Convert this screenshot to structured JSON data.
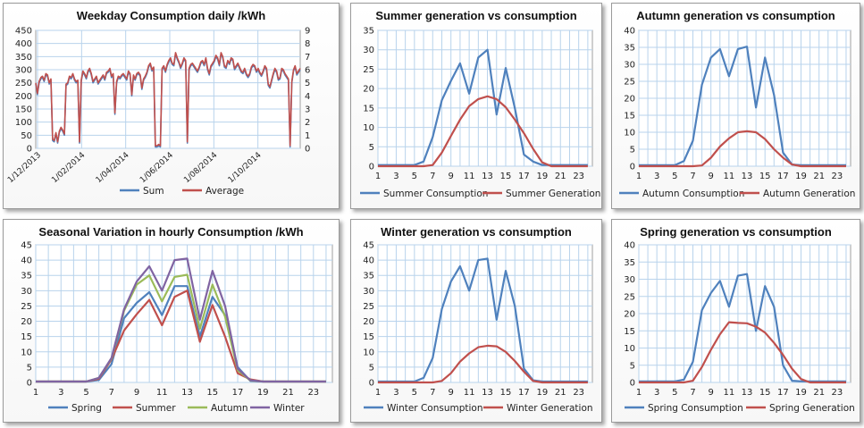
{
  "colors": {
    "blue": "#4f81bd",
    "red": "#c0504d",
    "green": "#9bbb59",
    "purple": "#8064a2",
    "grid": "#b8d3ec"
  },
  "chart_data": [
    {
      "id": "c1",
      "type": "line",
      "title": "Weekday Consumption daily /kWh",
      "xticklabels": [
        "1/12/2013",
        "1/02/2014",
        "1/04/2014",
        "1/06/2014",
        "1/08/2014",
        "1/10/2014"
      ],
      "ylim": [
        0,
        450
      ],
      "yticks": [
        0,
        50,
        100,
        150,
        200,
        250,
        300,
        350,
        400,
        450
      ],
      "y2lim": [
        0,
        9
      ],
      "y2ticks": [
        0,
        1,
        2,
        3,
        4,
        5,
        6,
        7,
        8,
        9
      ],
      "legend": "bottom",
      "series": [
        {
          "name": "Sum",
          "color": "#4f81bd",
          "values": [
            245,
            205,
            250,
            265,
            270,
            255,
            280,
            275,
            245,
            260,
            30,
            25,
            55,
            20,
            60,
            75,
            65,
            50,
            240,
            245,
            270,
            265,
            280,
            260,
            250,
            255,
            20,
            255,
            290,
            280,
            265,
            290,
            300,
            280,
            250,
            260,
            270,
            245,
            255,
            265,
            275,
            260,
            285,
            290,
            300,
            270,
            280,
            130,
            250,
            270,
            265,
            275,
            280,
            270,
            260,
            290,
            280,
            200,
            275,
            260,
            280,
            285,
            275,
            225,
            260,
            270,
            285,
            310,
            320,
            295,
            305,
            5,
            5,
            10,
            5,
            300,
            310,
            290,
            315,
            330,
            340,
            320,
            315,
            360,
            340,
            325,
            305,
            320,
            340,
            330,
            20,
            300,
            315,
            320,
            310,
            300,
            290,
            305,
            325,
            330,
            315,
            340,
            300,
            280,
            310,
            320,
            330,
            350,
            340,
            315,
            360,
            345,
            310,
            305,
            330,
            320,
            340,
            335,
            300,
            310,
            320,
            305,
            290,
            285,
            300,
            280,
            270,
            280,
            305,
            315,
            310,
            290,
            300,
            285,
            275,
            290,
            310,
            300,
            240,
            230,
            255,
            280,
            300,
            290,
            260,
            265,
            300,
            295,
            280,
            270,
            260,
            5,
            250,
            295,
            310,
            280,
            290,
            300
          ]
        },
        {
          "name": "Average",
          "color": "#c0504d",
          "values": [
            250,
            210,
            255,
            270,
            275,
            260,
            285,
            280,
            250,
            265,
            35,
            30,
            60,
            25,
            65,
            80,
            70,
            55,
            245,
            250,
            275,
            270,
            285,
            265,
            255,
            260,
            25,
            260,
            295,
            285,
            270,
            295,
            305,
            285,
            255,
            265,
            275,
            250,
            260,
            270,
            280,
            265,
            290,
            295,
            305,
            275,
            285,
            135,
            255,
            275,
            270,
            280,
            285,
            275,
            265,
            295,
            285,
            205,
            280,
            265,
            285,
            290,
            280,
            230,
            265,
            275,
            290,
            315,
            325,
            300,
            310,
            10,
            10,
            15,
            10,
            305,
            315,
            295,
            320,
            335,
            345,
            325,
            320,
            365,
            345,
            330,
            310,
            325,
            345,
            335,
            25,
            305,
            320,
            325,
            315,
            305,
            295,
            310,
            330,
            335,
            320,
            345,
            305,
            285,
            315,
            325,
            335,
            355,
            345,
            320,
            365,
            350,
            315,
            310,
            335,
            325,
            345,
            340,
            305,
            315,
            325,
            310,
            295,
            290,
            305,
            285,
            275,
            285,
            310,
            320,
            315,
            295,
            305,
            290,
            280,
            295,
            315,
            305,
            245,
            235,
            260,
            285,
            305,
            295,
            265,
            270,
            305,
            300,
            285,
            275,
            265,
            10,
            255,
            300,
            315,
            285,
            295,
            305
          ]
        }
      ]
    },
    {
      "id": "c2",
      "type": "line",
      "title": "Summer generation vs consumption",
      "x": [
        1,
        2,
        3,
        4,
        5,
        6,
        7,
        8,
        9,
        10,
        11,
        12,
        13,
        14,
        15,
        16,
        17,
        18,
        19,
        20,
        21,
        22,
        23,
        24
      ],
      "xticks": [
        1,
        3,
        5,
        7,
        9,
        11,
        13,
        15,
        17,
        19,
        21,
        23
      ],
      "ylim": [
        0,
        35
      ],
      "yticks": [
        0,
        5,
        10,
        15,
        20,
        25,
        30,
        35
      ],
      "legend": "bottom",
      "series": [
        {
          "name": "Summer Consumption",
          "color": "#4f81bd",
          "values": [
            0.3,
            0.3,
            0.3,
            0.3,
            0.3,
            1.2,
            7.5,
            17,
            22,
            26.5,
            18.7,
            28,
            30,
            13.3,
            25.3,
            15,
            3,
            1.2,
            0.3,
            0.3,
            0.3,
            0.3,
            0.3,
            0.3
          ]
        },
        {
          "name": "Summer Generation",
          "color": "#c0504d",
          "values": [
            0,
            0,
            0,
            0,
            0,
            0,
            0.3,
            3.5,
            7.8,
            12,
            15.5,
            17.3,
            18,
            17.3,
            15.2,
            12,
            8.5,
            4.5,
            1,
            0,
            0,
            0,
            0,
            0
          ]
        }
      ]
    },
    {
      "id": "c3",
      "type": "line",
      "title": "Autumn generation vs consumption",
      "x": [
        1,
        2,
        3,
        4,
        5,
        6,
        7,
        8,
        9,
        10,
        11,
        12,
        13,
        14,
        15,
        16,
        17,
        18,
        19,
        20,
        21,
        22,
        23,
        24
      ],
      "xticks": [
        1,
        3,
        5,
        7,
        9,
        11,
        13,
        15,
        17,
        19,
        21,
        23
      ],
      "ylim": [
        0,
        40
      ],
      "yticks": [
        0,
        5,
        10,
        15,
        20,
        25,
        30,
        35,
        40
      ],
      "legend": "bottom",
      "series": [
        {
          "name": "Autumn Consumption",
          "color": "#4f81bd",
          "values": [
            0.3,
            0.3,
            0.3,
            0.3,
            0.3,
            1.5,
            7.5,
            24,
            32,
            34.5,
            26.5,
            34.5,
            35.2,
            17.3,
            32,
            21,
            4,
            0.5,
            0.3,
            0.3,
            0.3,
            0.3,
            0.3,
            0.3
          ]
        },
        {
          "name": "Autumn Generation",
          "color": "#c0504d",
          "values": [
            0,
            0,
            0,
            0,
            0,
            0,
            0,
            0.2,
            2.5,
            5.8,
            8.2,
            10,
            10.3,
            10,
            8,
            5,
            2.5,
            0.5,
            0,
            0,
            0,
            0,
            0,
            0
          ]
        }
      ]
    },
    {
      "id": "c4",
      "type": "line",
      "title": "Seasonal Variation in hourly Consumption /kWh",
      "x": [
        1,
        2,
        3,
        4,
        5,
        6,
        7,
        8,
        9,
        10,
        11,
        12,
        13,
        14,
        15,
        16,
        17,
        18,
        19,
        20,
        21,
        22,
        23,
        24
      ],
      "xticks": [
        1,
        3,
        5,
        7,
        9,
        11,
        13,
        15,
        17,
        19,
        21,
        23
      ],
      "ylim": [
        0,
        45
      ],
      "yticks": [
        0,
        5,
        10,
        15,
        20,
        25,
        30,
        35,
        40,
        45
      ],
      "legend": "bottom",
      "series": [
        {
          "name": "Spring",
          "color": "#4f81bd",
          "values": [
            0.3,
            0.3,
            0.3,
            0.3,
            0.3,
            0.8,
            6,
            21,
            26,
            29.5,
            22,
            31.5,
            31.5,
            15,
            28,
            22,
            5,
            0.5,
            0.3,
            0.3,
            0.3,
            0.3,
            0.3,
            0.3
          ]
        },
        {
          "name": "Summer",
          "color": "#c0504d",
          "values": [
            0.3,
            0.3,
            0.3,
            0.3,
            0.3,
            1.2,
            7.5,
            17,
            22.3,
            27,
            18.7,
            28,
            30,
            13.3,
            25.3,
            15,
            3,
            1,
            0.3,
            0.3,
            0.3,
            0.3,
            0.3,
            0.3
          ]
        },
        {
          "name": "Autumn",
          "color": "#9bbb59",
          "values": [
            0.3,
            0.3,
            0.3,
            0.3,
            0.3,
            1.5,
            7.8,
            23.5,
            32,
            35,
            26.5,
            34.5,
            35.2,
            17.5,
            32,
            21.5,
            4,
            0.6,
            0.3,
            0.3,
            0.3,
            0.3,
            0.3,
            0.3
          ]
        },
        {
          "name": "Winter",
          "color": "#8064a2",
          "values": [
            0.3,
            0.3,
            0.3,
            0.3,
            0.3,
            1.5,
            8,
            24,
            33,
            38,
            30,
            40,
            40.5,
            20.5,
            36.5,
            25,
            4.5,
            0.7,
            0.3,
            0.3,
            0.3,
            0.3,
            0.3,
            0.3
          ]
        }
      ]
    },
    {
      "id": "c5",
      "type": "line",
      "title": "Winter generation vs consumption",
      "x": [
        1,
        2,
        3,
        4,
        5,
        6,
        7,
        8,
        9,
        10,
        11,
        12,
        13,
        14,
        15,
        16,
        17,
        18,
        19,
        20,
        21,
        22,
        23,
        24
      ],
      "xticks": [
        1,
        3,
        5,
        7,
        9,
        11,
        13,
        15,
        17,
        19,
        21,
        23
      ],
      "ylim": [
        0,
        45
      ],
      "yticks": [
        0,
        5,
        10,
        15,
        20,
        25,
        30,
        35,
        40,
        45
      ],
      "legend": "bottom",
      "series": [
        {
          "name": "Winter Consumption",
          "color": "#4f81bd",
          "values": [
            0.3,
            0.3,
            0.3,
            0.3,
            0.3,
            1.5,
            8,
            24,
            33,
            38,
            30,
            40,
            40.5,
            20.5,
            36.5,
            25,
            4.5,
            0.7,
            0.3,
            0.3,
            0.3,
            0.3,
            0.3,
            0.3
          ]
        },
        {
          "name": "Winter Generation",
          "color": "#c0504d",
          "values": [
            0,
            0,
            0,
            0,
            0,
            0,
            0,
            0.5,
            3,
            6.8,
            9.5,
            11.5,
            12,
            11.8,
            10,
            7,
            3.5,
            0.5,
            0,
            0,
            0,
            0,
            0,
            0
          ]
        }
      ]
    },
    {
      "id": "c6",
      "type": "line",
      "title": "Spring generation vs consumption",
      "x": [
        1,
        2,
        3,
        4,
        5,
        6,
        7,
        8,
        9,
        10,
        11,
        12,
        13,
        14,
        15,
        16,
        17,
        18,
        19,
        20,
        21,
        22,
        23,
        24
      ],
      "xticks": [
        1,
        3,
        5,
        7,
        9,
        11,
        13,
        15,
        17,
        19,
        21,
        23
      ],
      "ylim": [
        0,
        40
      ],
      "yticks": [
        0,
        5,
        10,
        15,
        20,
        25,
        30,
        35,
        40
      ],
      "legend": "bottom",
      "series": [
        {
          "name": "Spring Consumption",
          "color": "#4f81bd",
          "values": [
            0.3,
            0.3,
            0.3,
            0.3,
            0.3,
            0.8,
            6,
            21,
            26,
            29.5,
            22,
            31,
            31.5,
            15,
            28,
            22,
            5,
            0.5,
            0.3,
            0.3,
            0.3,
            0.3,
            0.3,
            0.3
          ]
        },
        {
          "name": "Spring Generation",
          "color": "#c0504d",
          "values": [
            0,
            0,
            0,
            0,
            0,
            0,
            0.5,
            4.5,
            9.5,
            14,
            17.5,
            17.3,
            17.2,
            16.2,
            14.5,
            11.5,
            8,
            4,
            1,
            0,
            0,
            0,
            0,
            0
          ]
        }
      ]
    }
  ]
}
